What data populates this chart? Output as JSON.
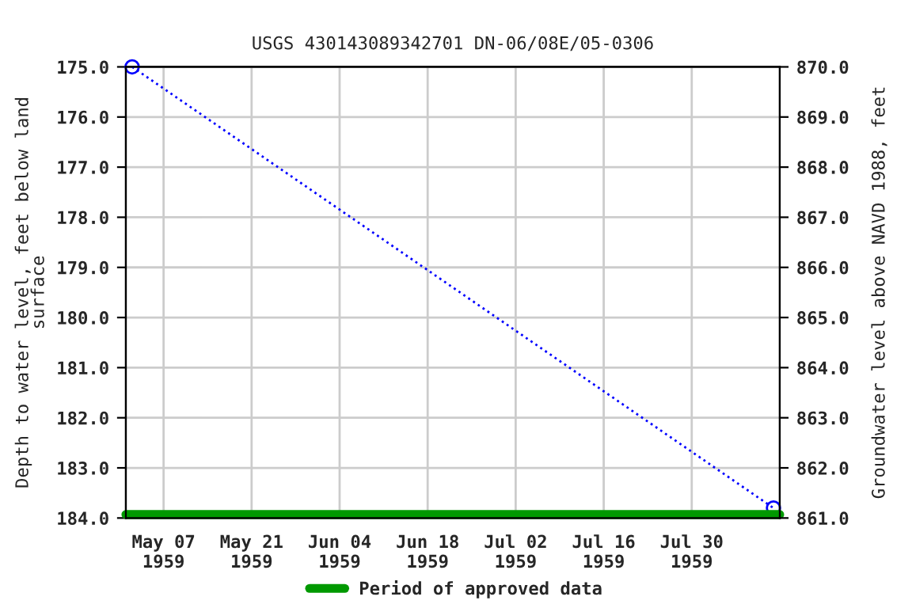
{
  "chart_data": {
    "type": "line",
    "title": "USGS 430143089342701 DN-06/08E/05-0306",
    "ylabel": "Depth to water level, feet below land\nsurface",
    "y2label": "Groundwater level above NAVD 1988, feet",
    "xlim": [
      "1959-05-01",
      "1959-08-13"
    ],
    "xticks": [
      {
        "value": "1959-05-07",
        "label": "May 07\n1959"
      },
      {
        "value": "1959-05-21",
        "label": "May 21\n1959"
      },
      {
        "value": "1959-06-04",
        "label": "Jun 04\n1959"
      },
      {
        "value": "1959-06-18",
        "label": "Jun 18\n1959"
      },
      {
        "value": "1959-07-02",
        "label": "Jul 02\n1959"
      },
      {
        "value": "1959-07-16",
        "label": "Jul 16\n1959"
      },
      {
        "value": "1959-07-30",
        "label": "Jul 30\n1959"
      }
    ],
    "ylim": [
      184.0,
      175.0
    ],
    "yticks": [
      {
        "value": 175,
        "label": "175.0"
      },
      {
        "value": 176,
        "label": "176.0"
      },
      {
        "value": 177,
        "label": "177.0"
      },
      {
        "value": 178,
        "label": "178.0"
      },
      {
        "value": 179,
        "label": "179.0"
      },
      {
        "value": 180,
        "label": "180.0"
      },
      {
        "value": 181,
        "label": "181.0"
      },
      {
        "value": 182,
        "label": "182.0"
      },
      {
        "value": 183,
        "label": "183.0"
      },
      {
        "value": 184,
        "label": "184.0"
      }
    ],
    "y2lim": [
      861.0,
      870.0
    ],
    "y2ticks": [
      {
        "value": 861,
        "label": "861.0"
      },
      {
        "value": 862,
        "label": "862.0"
      },
      {
        "value": 863,
        "label": "863.0"
      },
      {
        "value": 864,
        "label": "864.0"
      },
      {
        "value": 865,
        "label": "865.0"
      },
      {
        "value": 866,
        "label": "866.0"
      },
      {
        "value": 867,
        "label": "867.0"
      },
      {
        "value": 868,
        "label": "868.0"
      },
      {
        "value": 869,
        "label": "869.0"
      },
      {
        "value": 870,
        "label": "870.0"
      }
    ],
    "grid": true,
    "legend": "bottom",
    "series": [
      {
        "color": "#0000ff",
        "x": [
          "1959-05-02",
          "1959-08-12"
        ],
        "values": [
          175.0,
          183.8
        ],
        "marker": "circle",
        "line_style": "dotted"
      },
      {
        "name": "Period of approved data",
        "color": "#009900",
        "x": [
          "1959-05-01",
          "1959-08-13"
        ],
        "values": [
          183.93,
          183.93
        ],
        "marker": "none",
        "line_style": "solid"
      }
    ]
  }
}
